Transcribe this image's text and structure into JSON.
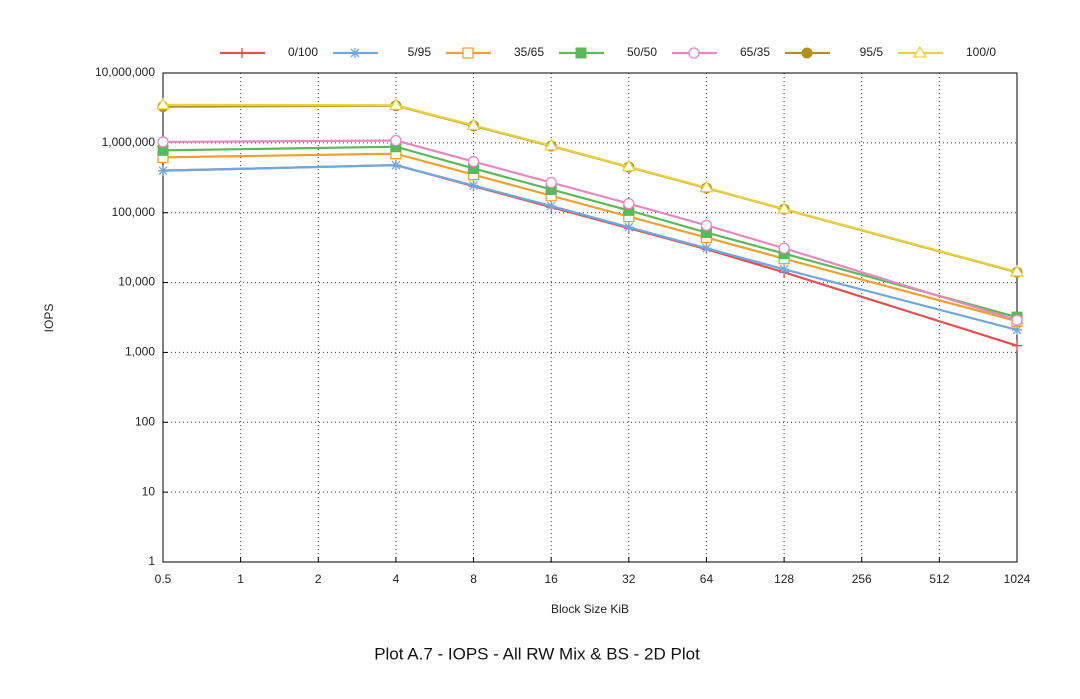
{
  "chart_data": {
    "type": "line",
    "caption": "Plot A.7 - IOPS - All RW Mix & BS - 2D Plot",
    "xlabel": "Block Size KiB",
    "ylabel": "IOPS",
    "xscale": "log",
    "yscale": "log",
    "grid": true,
    "legend": "top",
    "x": [
      0.5,
      4,
      8,
      16,
      32,
      64,
      128,
      1024
    ],
    "xlim": [
      0.5,
      1024
    ],
    "xticks": [
      0.5,
      1,
      2,
      4,
      8,
      16,
      32,
      64,
      128,
      256,
      512,
      1024
    ],
    "ylim": [
      1,
      10000000
    ],
    "yticks": [
      1,
      10,
      100,
      {
        "value": 1000,
        "label": "1,000"
      },
      {
        "value": 10000,
        "label": "10,000"
      },
      {
        "value": 100000,
        "label": "100,000"
      },
      {
        "value": 1000000,
        "label": "1,000,000"
      },
      {
        "value": 10000000,
        "label": "10,000,000"
      }
    ],
    "series": [
      {
        "name": "0/100",
        "color": "#e05252",
        "marker": "plus",
        "values": [
          400000,
          480000,
          240000,
          120000,
          60000,
          30000,
          14000,
          1250
        ]
      },
      {
        "name": "5/95",
        "color": "#6fa8dc",
        "marker": "star",
        "values": [
          400000,
          480000,
          245000,
          125000,
          62000,
          31000,
          15500,
          2100
        ]
      },
      {
        "name": "35/65",
        "color": "#f0a030",
        "marker": "square-open",
        "values": [
          620000,
          700000,
          350000,
          175000,
          88000,
          44000,
          22000,
          2800
        ]
      },
      {
        "name": "50/50",
        "color": "#5cb85c",
        "marker": "square",
        "values": [
          780000,
          880000,
          430000,
          215000,
          108000,
          52000,
          26000,
          3200
        ]
      },
      {
        "name": "65/35",
        "color": "#e888c0",
        "marker": "circle-open",
        "values": [
          1030000,
          1080000,
          540000,
          270000,
          135000,
          66000,
          31000,
          2900
        ]
      },
      {
        "name": "95/5",
        "color": "#b09020",
        "marker": "circle",
        "values": [
          3300000,
          3400000,
          1750000,
          900000,
          450000,
          225000,
          112000,
          14000
        ]
      },
      {
        "name": "100/0",
        "color": "#e8d040",
        "marker": "triangle-open",
        "values": [
          3500000,
          3450000,
          1780000,
          910000,
          455000,
          228000,
          113000,
          14200
        ]
      }
    ]
  }
}
